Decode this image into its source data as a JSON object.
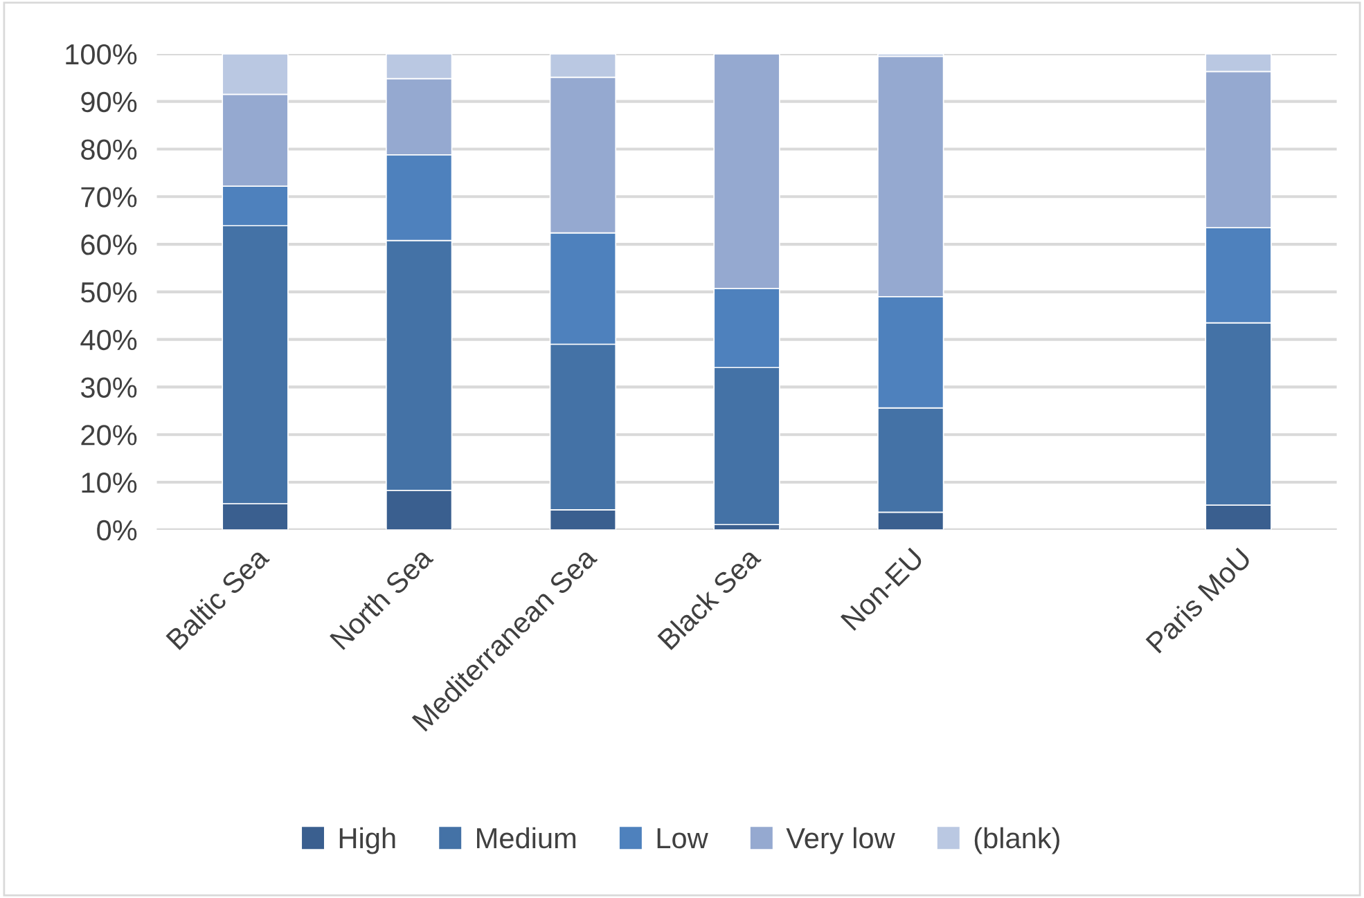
{
  "chart_data": {
    "type": "bar",
    "stacked": true,
    "categories": [
      "Baltic Sea",
      "North Sea",
      "Mediterranean Sea",
      "Black Sea",
      "Non-EU",
      null,
      "Paris MoU"
    ],
    "series": [
      {
        "name": "High",
        "color": "#3a5f8f",
        "values": [
          5.5,
          8.3,
          4.2,
          1.1,
          3.7,
          null,
          5.2
        ]
      },
      {
        "name": "Medium",
        "color": "#4472a6",
        "values": [
          58.4,
          52.5,
          34.8,
          33.0,
          21.9,
          null,
          38.3
        ]
      },
      {
        "name": "Low",
        "color": "#4e81bd",
        "values": [
          8.3,
          18.0,
          23.4,
          16.6,
          23.4,
          null,
          20.0
        ]
      },
      {
        "name": "Very low",
        "color": "#95a9d0",
        "values": [
          19.3,
          16.0,
          32.7,
          49.3,
          50.5,
          null,
          32.8
        ]
      },
      {
        "name": "(blank)",
        "color": "#bac8e2",
        "values": [
          8.5,
          5.2,
          4.9,
          null,
          0.5,
          null,
          3.7
        ]
      }
    ],
    "ylim": [
      0,
      100
    ],
    "yticks": [
      {
        "value": 0,
        "label": "0%"
      },
      {
        "value": 10,
        "label": "10%"
      },
      {
        "value": 20,
        "label": "20%"
      },
      {
        "value": 30,
        "label": "30%"
      },
      {
        "value": 40,
        "label": "40%"
      },
      {
        "value": 50,
        "label": "50%"
      },
      {
        "value": 60,
        "label": "60%"
      },
      {
        "value": 70,
        "label": "70%"
      },
      {
        "value": 80,
        "label": "80%"
      },
      {
        "value": 90,
        "label": "90%"
      },
      {
        "value": 100,
        "label": "100%"
      }
    ],
    "grid": "y",
    "legend": "bottom"
  }
}
